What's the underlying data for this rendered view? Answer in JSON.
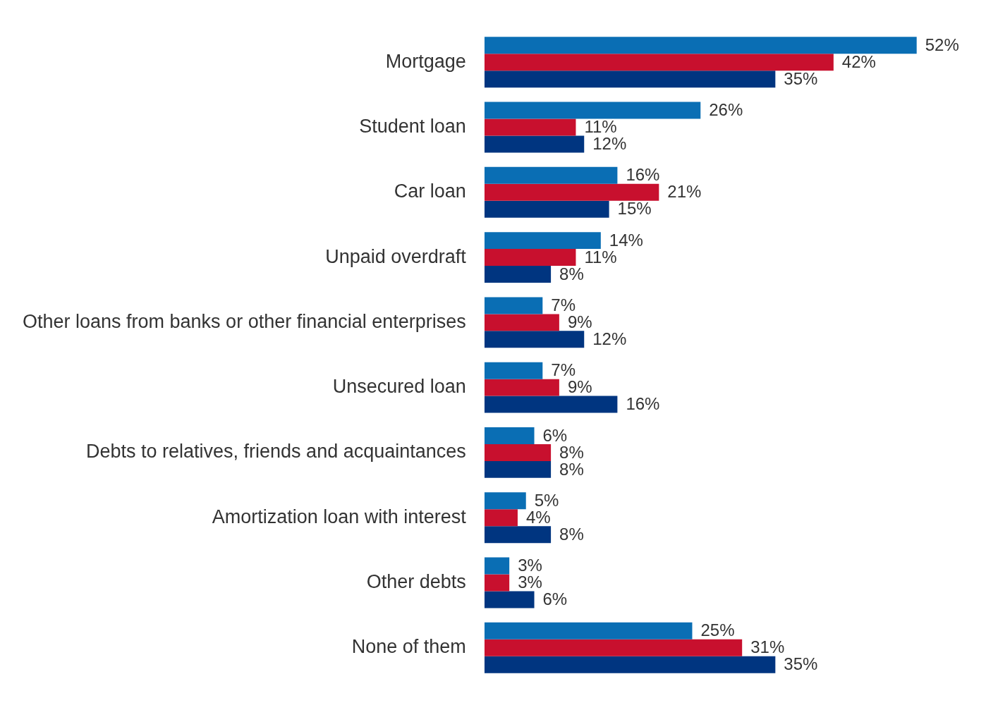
{
  "chart_data": {
    "type": "bar",
    "orientation": "horizontal",
    "categories": [
      "Mortgage",
      "Student loan",
      "Car loan",
      "Unpaid overdraft",
      "Other loans from banks or other financial enterprises",
      "Unsecured loan",
      "Debts to relatives, friends and acquaintances",
      "Amortization loan with interest",
      "Other debts",
      "None of them"
    ],
    "series": [
      {
        "color": "#0a6eb4",
        "values": [
          52,
          26,
          16,
          14,
          7,
          7,
          6,
          5,
          3,
          25
        ],
        "value_labels": [
          "52%",
          "26%",
          "16%",
          "14%",
          "7%",
          "7%",
          "6%",
          "5%",
          "3%",
          "25%"
        ]
      },
      {
        "color": "#c8102e",
        "values": [
          42,
          11,
          21,
          11,
          9,
          9,
          8,
          4,
          3,
          31
        ],
        "value_labels": [
          "42%",
          "11%",
          "21%",
          "11%",
          "9%",
          "9%",
          "8%",
          "4%",
          "3%",
          "31%"
        ]
      },
      {
        "color": "#003580",
        "values": [
          35,
          12,
          15,
          8,
          12,
          16,
          8,
          8,
          6,
          35
        ],
        "value_labels": [
          "35%",
          "12%",
          "15%",
          "8%",
          "12%",
          "16%",
          "8%",
          "8%",
          "6%",
          "35%"
        ]
      }
    ],
    "grid": false,
    "legend": false
  }
}
